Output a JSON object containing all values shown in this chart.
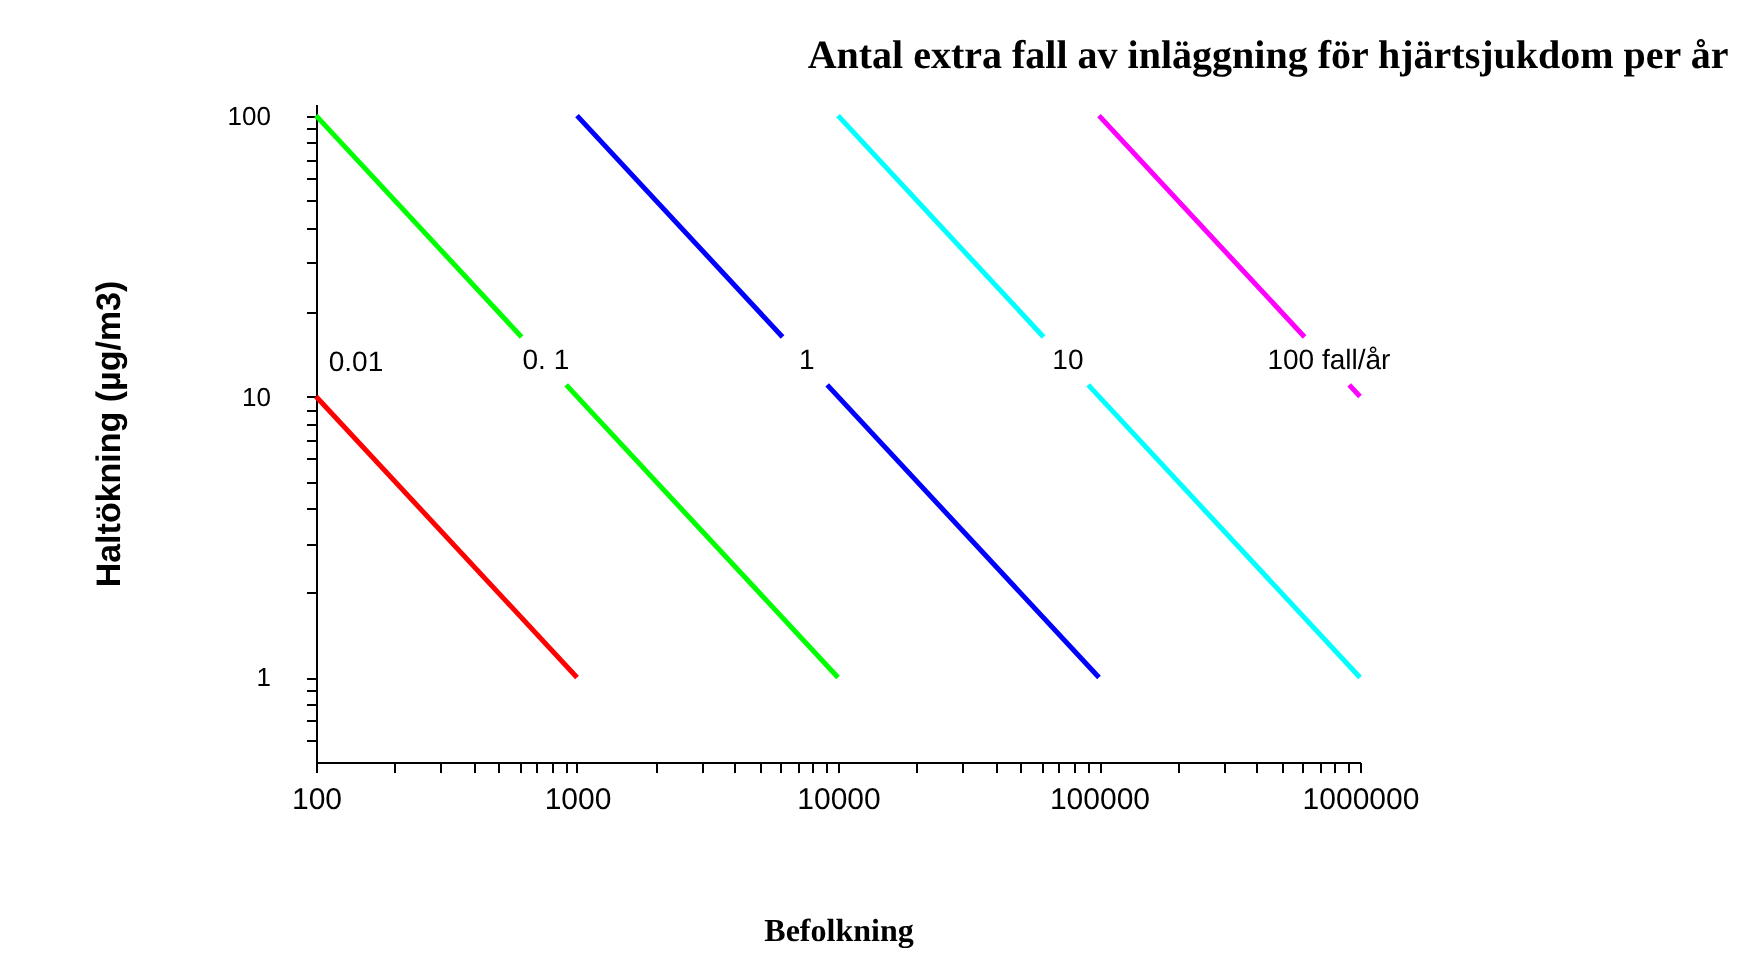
{
  "chart_data": {
    "type": "line",
    "title": "Antal extra fall av inläggning för hjärtsjukdom per år",
    "xlabel": "Befolkning",
    "ylabel": "Haltökning (µg/m3)",
    "log": "xy",
    "grid": false,
    "legend": false,
    "marker": "none",
    "line_style": "solid",
    "xlim": [
      100,
      1000000
    ],
    "ylim": [
      0.5,
      110
    ],
    "xticks": [
      100,
      {
        "value": 200,
        "label": null
      },
      {
        "value": 300,
        "label": null
      },
      {
        "value": 400,
        "label": null
      },
      {
        "value": 500,
        "label": null
      },
      {
        "value": 600,
        "label": null
      },
      {
        "value": 700,
        "label": null
      },
      {
        "value": 800,
        "label": null
      },
      {
        "value": 900,
        "label": null
      },
      1000,
      {
        "value": 2000,
        "label": null
      },
      {
        "value": 3000,
        "label": null
      },
      {
        "value": 4000,
        "label": null
      },
      {
        "value": 5000,
        "label": null
      },
      {
        "value": 6000,
        "label": null
      },
      {
        "value": 7000,
        "label": null
      },
      {
        "value": 8000,
        "label": null
      },
      {
        "value": 9000,
        "label": null
      },
      10000,
      {
        "value": 20000,
        "label": null
      },
      {
        "value": 30000,
        "label": null
      },
      {
        "value": 40000,
        "label": null
      },
      {
        "value": 50000,
        "label": null
      },
      {
        "value": 60000,
        "label": null
      },
      {
        "value": 70000,
        "label": null
      },
      {
        "value": 80000,
        "label": null
      },
      {
        "value": 90000,
        "label": null
      },
      100000,
      {
        "value": 200000,
        "label": null
      },
      {
        "value": 300000,
        "label": null
      },
      {
        "value": 400000,
        "label": null
      },
      {
        "value": 500000,
        "label": null
      },
      {
        "value": 600000,
        "label": null
      },
      {
        "value": 700000,
        "label": null
      },
      {
        "value": 800000,
        "label": null
      },
      {
        "value": 900000,
        "label": null
      },
      1000000
    ],
    "yticks": [
      {
        "value": 0.6,
        "label": null
      },
      {
        "value": 0.7,
        "label": null
      },
      {
        "value": 0.8,
        "label": null
      },
      {
        "value": 0.9,
        "label": null
      },
      1,
      {
        "value": 2,
        "label": null
      },
      {
        "value": 3,
        "label": null
      },
      {
        "value": 4,
        "label": null
      },
      {
        "value": 5,
        "label": null
      },
      {
        "value": 6,
        "label": null
      },
      {
        "value": 7,
        "label": null
      },
      {
        "value": 8,
        "label": null
      },
      {
        "value": 9,
        "label": null
      },
      10,
      {
        "value": 20,
        "label": null
      },
      {
        "value": 30,
        "label": null
      },
      {
        "value": 40,
        "label": null
      },
      {
        "value": 50,
        "label": null
      },
      {
        "value": 60,
        "label": null
      },
      {
        "value": 70,
        "label": null
      },
      {
        "value": 80,
        "label": null
      },
      {
        "value": 90,
        "label": null
      },
      100
    ],
    "series": [
      {
        "name": "0.01",
        "color": "#ff0000",
        "x": [
          100,
          1000
        ],
        "values": [
          10,
          1
        ]
      },
      {
        "name": "0. 1",
        "color": "#00ff00",
        "x": [
          100,
          613,
          760,
          909,
          10000
        ],
        "values": [
          100,
          16.3,
          null,
          11,
          1
        ]
      },
      {
        "name": "1",
        "color": "#0000ff",
        "x": [
          1000,
          6130,
          7600,
          9090,
          100000
        ],
        "values": [
          100,
          16.3,
          null,
          11,
          1
        ]
      },
      {
        "name": "10",
        "color": "#00ffff",
        "x": [
          10000,
          61300,
          76000,
          90900,
          1000000
        ],
        "values": [
          100,
          16.3,
          null,
          11,
          1
        ]
      },
      {
        "name": "100  fall/år",
        "color": "#ff00ff",
        "x": [
          100000,
          613000,
          760000,
          909000,
          1000000
        ],
        "values": [
          100,
          16.3,
          null,
          11,
          10
        ]
      }
    ]
  }
}
